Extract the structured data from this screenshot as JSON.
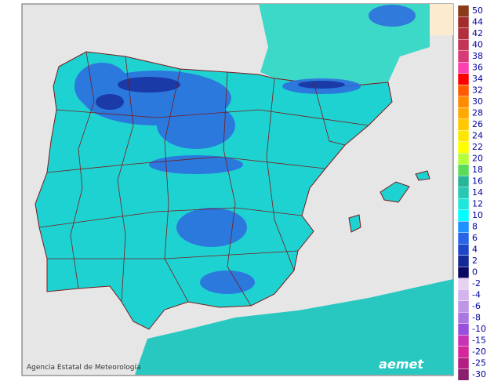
{
  "legend": {
    "values": [
      50,
      44,
      42,
      40,
      38,
      36,
      34,
      32,
      30,
      28,
      26,
      24,
      22,
      20,
      18,
      16,
      14,
      12,
      10,
      8,
      6,
      4,
      2,
      0,
      -2,
      -4,
      -6,
      -8,
      -10,
      -15,
      -20,
      -25,
      -30
    ],
    "colors": [
      "#8b3a1a",
      "#a02c2c",
      "#b2303e",
      "#c43454",
      "#d83a78",
      "#ff40b0",
      "#ff0000",
      "#ff5a00",
      "#ff8c00",
      "#ffaa00",
      "#ffc800",
      "#ffe600",
      "#ffff00",
      "#b4ff3c",
      "#5adc5a",
      "#28b496",
      "#28c8b4",
      "#1ee6dc",
      "#00ffff",
      "#1e90ff",
      "#2864e6",
      "#1e46c8",
      "#142896",
      "#0a0a64",
      "#e6d2f0",
      "#d2b4ee",
      "#be96e6",
      "#aa78e0",
      "#9650dc",
      "#c832b4",
      "#d2289a",
      "#b41e82",
      "#8c1e6e"
    ]
  },
  "credit": "Agencia Estatal de Meteorología",
  "logo": "aemet"
}
